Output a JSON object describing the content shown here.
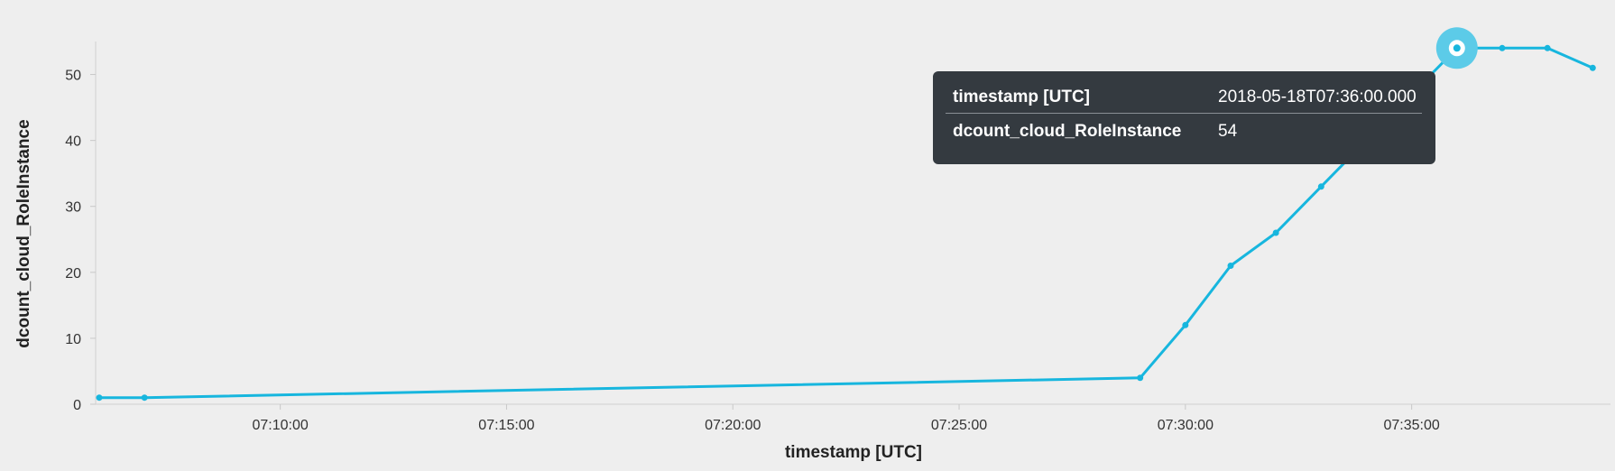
{
  "chart_data": {
    "type": "line",
    "xlabel": "timestamp [UTC]",
    "ylabel": "dcount_cloud_RoleInstance",
    "x_tick_labels": [
      "07:10:00",
      "07:15:00",
      "07:20:00",
      "07:25:00",
      "07:30:00",
      "07:35:00"
    ],
    "y_tick_labels": [
      "0",
      "10",
      "20",
      "30",
      "40",
      "50"
    ],
    "ylim": [
      0,
      55
    ],
    "xlim": [
      "07:06:00",
      "07:39:20"
    ],
    "grid": false,
    "series": [
      {
        "color": "#17b6de",
        "x": [
          "07:06:00",
          "07:07:00",
          "07:29:00",
          "07:30:00",
          "07:31:00",
          "07:32:00",
          "07:33:00",
          "07:34:00",
          "07:35:00",
          "07:36:00",
          "07:37:00",
          "07:38:00",
          "07:39:00"
        ],
        "y": [
          1,
          1,
          4,
          12,
          21,
          26,
          33,
          40,
          47,
          54,
          54,
          54,
          51
        ]
      }
    ],
    "highlight": {
      "x": "07:36:00",
      "y": 54
    }
  },
  "tooltip": {
    "rows": [
      {
        "key": "timestamp [UTC]",
        "value": "2018-05-18T07:36:00.000"
      },
      {
        "key": "dcount_cloud_RoleInstance",
        "value": "54"
      }
    ]
  },
  "colors": {
    "line": "#17b6de",
    "highlight_ring": "#5ccbe8",
    "tooltip_bg": "#343a40",
    "background": "#eeeeee"
  }
}
